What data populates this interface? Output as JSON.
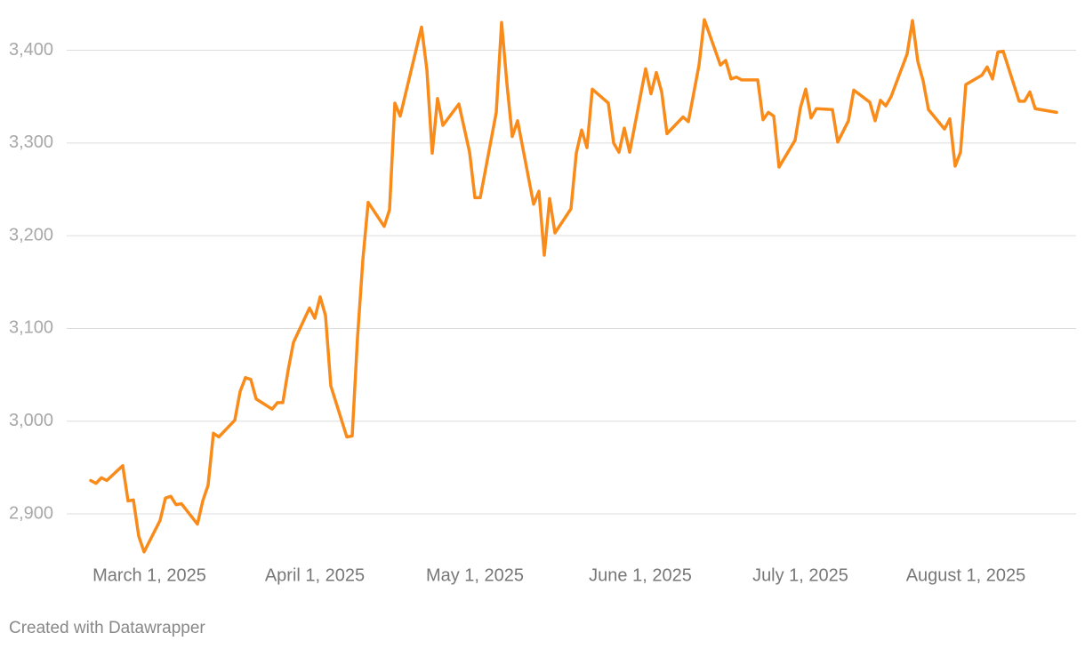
{
  "chart_data": {
    "type": "line",
    "x": [
      "2025-02-18",
      "2025-02-19",
      "2025-02-20",
      "2025-02-21",
      "2025-02-24",
      "2025-02-25",
      "2025-02-26",
      "2025-02-27",
      "2025-02-28",
      "2025-03-03",
      "2025-03-04",
      "2025-03-05",
      "2025-03-06",
      "2025-03-07",
      "2025-03-10",
      "2025-03-11",
      "2025-03-12",
      "2025-03-13",
      "2025-03-14",
      "2025-03-17",
      "2025-03-18",
      "2025-03-19",
      "2025-03-20",
      "2025-03-21",
      "2025-03-24",
      "2025-03-25",
      "2025-03-26",
      "2025-03-27",
      "2025-03-28",
      "2025-03-31",
      "2025-04-01",
      "2025-04-02",
      "2025-04-03",
      "2025-04-04",
      "2025-04-07",
      "2025-04-08",
      "2025-04-09",
      "2025-04-10",
      "2025-04-11",
      "2025-04-14",
      "2025-04-15",
      "2025-04-16",
      "2025-04-17",
      "2025-04-21",
      "2025-04-22",
      "2025-04-23",
      "2025-04-24",
      "2025-04-25",
      "2025-04-28",
      "2025-04-30",
      "2025-05-01",
      "2025-05-02",
      "2025-05-05",
      "2025-05-06",
      "2025-05-07",
      "2025-05-08",
      "2025-05-09",
      "2025-05-12",
      "2025-05-13",
      "2025-05-14",
      "2025-05-15",
      "2025-05-16",
      "2025-05-19",
      "2025-05-20",
      "2025-05-21",
      "2025-05-22",
      "2025-05-23",
      "2025-05-26",
      "2025-05-27",
      "2025-05-28",
      "2025-05-29",
      "2025-05-30",
      "2025-06-02",
      "2025-06-03",
      "2025-06-04",
      "2025-06-05",
      "2025-06-06",
      "2025-06-09",
      "2025-06-10",
      "2025-06-12",
      "2025-06-13",
      "2025-06-16",
      "2025-06-17",
      "2025-06-18",
      "2025-06-19",
      "2025-06-20",
      "2025-06-23",
      "2025-06-24",
      "2025-06-25",
      "2025-06-26",
      "2025-06-27",
      "2025-06-30",
      "2025-07-01",
      "2025-07-02",
      "2025-07-03",
      "2025-07-04",
      "2025-07-07",
      "2025-07-08",
      "2025-07-10",
      "2025-07-11",
      "2025-07-14",
      "2025-07-15",
      "2025-07-16",
      "2025-07-17",
      "2025-07-18",
      "2025-07-21",
      "2025-07-22",
      "2025-07-23",
      "2025-07-24",
      "2025-07-25",
      "2025-07-28",
      "2025-07-29",
      "2025-07-30",
      "2025-07-31",
      "2025-08-01",
      "2025-08-04",
      "2025-08-05",
      "2025-08-06",
      "2025-08-07",
      "2025-08-08",
      "2025-08-11",
      "2025-08-12",
      "2025-08-13",
      "2025-08-14",
      "2025-08-18"
    ],
    "series": [
      {
        "color": "#f98b1a",
        "values": [
          2936,
          2933,
          2939,
          2936,
          2952,
          2914,
          2915,
          2876,
          2859,
          2893,
          2917,
          2919,
          2910,
          2911,
          2889,
          2914,
          2931,
          2987,
          2983,
          3001,
          3032,
          3047,
          3045,
          3024,
          3013,
          3020,
          3020,
          3055,
          3085,
          3122,
          3111,
          3134,
          3114,
          3038,
          2983,
          2984,
          3090,
          3174,
          3236,
          3210,
          3228,
          3343,
          3329,
          3425,
          3379,
          3289,
          3348,
          3319,
          3342,
          3290,
          3241,
          3241,
          3333,
          3430,
          3364,
          3307,
          3324,
          3234,
          3248,
          3179,
          3240,
          3203,
          3229,
          3289,
          3314,
          3295,
          3358,
          3343,
          3300,
          3290,
          3316,
          3290,
          3380,
          3353,
          3376,
          3355,
          3310,
          3328,
          3323,
          3384,
          3433,
          3384,
          3389,
          3369,
          3371,
          3368,
          3368,
          3325,
          3333,
          3329,
          3274,
          3303,
          3338,
          3358,
          3327,
          3337,
          3336,
          3301,
          3324,
          3357,
          3344,
          3324,
          3346,
          3340,
          3350,
          3396,
          3432,
          3388,
          3367,
          3336,
          3315,
          3326,
          3275,
          3290,
          3363,
          3373,
          3382,
          3369,
          3398,
          3399,
          3345,
          3345,
          3355,
          3337,
          3333
        ]
      }
    ],
    "xlim": [
      "2025-02-18",
      "2025-08-18"
    ],
    "xticks": [
      {
        "value": "2025-03-01",
        "label": "March 1, 2025"
      },
      {
        "value": "2025-04-01",
        "label": "April 1, 2025"
      },
      {
        "value": "2025-05-01",
        "label": "May 1, 2025"
      },
      {
        "value": "2025-06-01",
        "label": "June 1, 2025"
      },
      {
        "value": "2025-07-01",
        "label": "July 1, 2025"
      },
      {
        "value": "2025-08-01",
        "label": "August 1, 2025"
      }
    ],
    "ylim": [
      2855,
      3435
    ],
    "yticks": [
      {
        "value": 2900,
        "label": "2,900"
      },
      {
        "value": 3000,
        "label": "3,000"
      },
      {
        "value": 3100,
        "label": "3,100"
      },
      {
        "value": 3200,
        "label": "3,200"
      },
      {
        "value": 3300,
        "label": "3,300"
      },
      {
        "value": 3400,
        "label": "3,400"
      }
    ],
    "grid": true,
    "footer": "Created with Datawrapper"
  }
}
